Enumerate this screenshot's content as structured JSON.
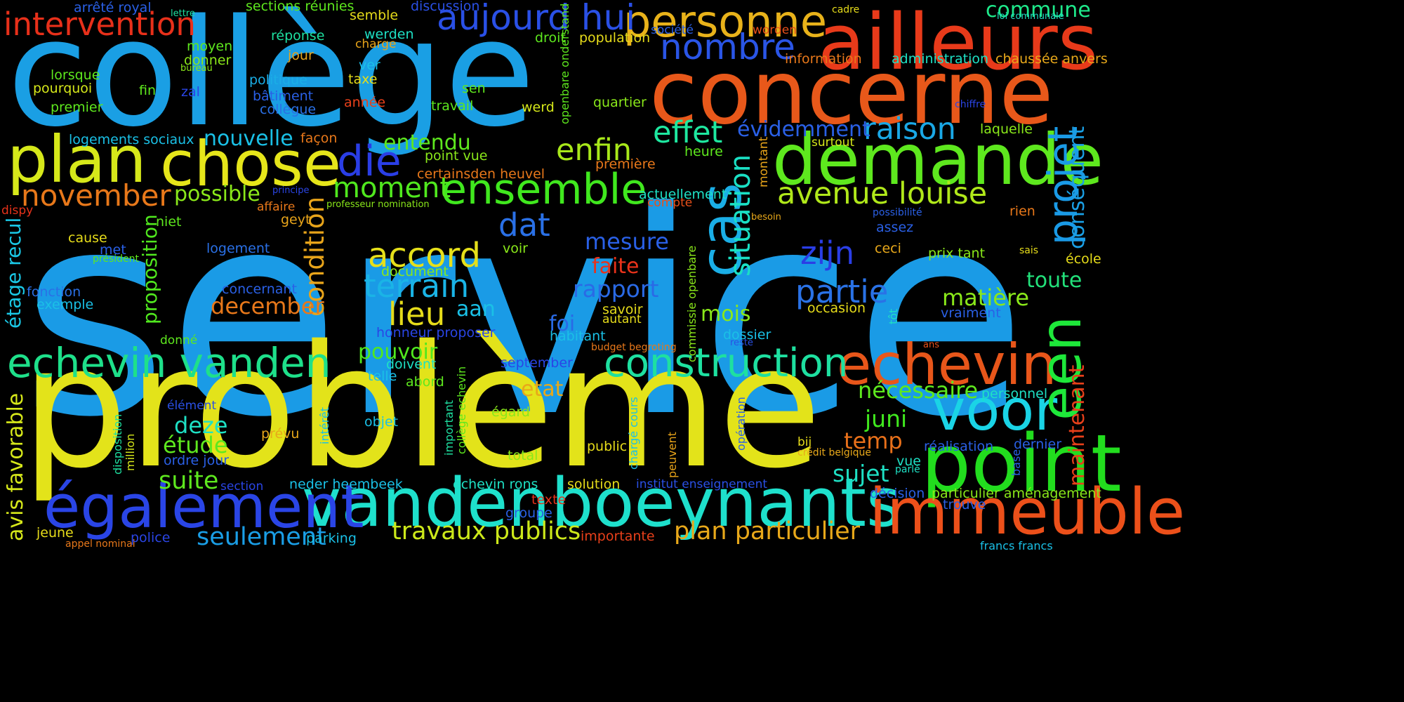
{
  "background": "#000000",
  "words": [
    {
      "text": "service",
      "color": "#1a9be6"
    },
    {
      "text": "problème",
      "color": "#e3e31a"
    },
    {
      "text": "collège",
      "color": "#1a9fe4"
    },
    {
      "text": "concerne",
      "color": "#e8581a"
    },
    {
      "text": "ailleurs",
      "color": "#e83a1a"
    },
    {
      "text": "point",
      "color": "#22dd1e"
    },
    {
      "text": "boeynants",
      "color": "#1ee0cc"
    },
    {
      "text": "vanden",
      "color": "#1ee0cc"
    },
    {
      "text": "également",
      "color": "#2a45e6"
    },
    {
      "text": "immeuble",
      "color": "#ec501a"
    },
    {
      "text": "demande",
      "color": "#5ee81e"
    },
    {
      "text": "chose",
      "color": "#e6e61a"
    },
    {
      "text": "plan",
      "color": "#d6e81a"
    },
    {
      "text": "echevin",
      "color": "#e8561a"
    },
    {
      "text": "voor",
      "color": "#1ad4e6"
    },
    {
      "text": "een",
      "color": "#1ee83a"
    },
    {
      "text": "cas",
      "color": "#1aaee6"
    },
    {
      "text": "projet",
      "color": "#1a9ae6"
    },
    {
      "text": "personne",
      "color": "#e8b21a"
    },
    {
      "text": "echevin vanden",
      "color": "#1ee08a"
    },
    {
      "text": "construction",
      "color": "#1ee0a0"
    },
    {
      "text": "ensemble",
      "color": "#40e81e"
    },
    {
      "text": "die",
      "color": "#2a3ee6"
    },
    {
      "text": "aujourd hui",
      "color": "#2a50e6"
    },
    {
      "text": "intervention",
      "color": "#e8301a"
    },
    {
      "text": "terrain",
      "color": "#1ab4e6"
    },
    {
      "text": "accord",
      "color": "#e6e01a"
    },
    {
      "text": "moment",
      "color": "#50e81e"
    },
    {
      "text": "nombre",
      "color": "#2a55e6"
    },
    {
      "text": "raison",
      "color": "#1aa8e6"
    },
    {
      "text": "avenue louise",
      "color": "#b0e81a"
    },
    {
      "text": "november",
      "color": "#e8781a"
    },
    {
      "text": "situation",
      "color": "#1ae0c4"
    },
    {
      "text": "condition",
      "color": "#e8a41a"
    },
    {
      "text": "zijn",
      "color": "#2a3ee6"
    },
    {
      "text": "partie",
      "color": "#2a72e6"
    },
    {
      "text": "effet",
      "color": "#1ee8a0"
    },
    {
      "text": "enfin",
      "color": "#a8e81a"
    },
    {
      "text": "lieu",
      "color": "#e6dc1a"
    },
    {
      "text": "travaux publics",
      "color": "#cce81a"
    },
    {
      "text": "plan particulier",
      "color": "#e8a81a"
    },
    {
      "text": "seulement",
      "color": "#1a9ee6"
    },
    {
      "text": "dat",
      "color": "#2a70e6"
    },
    {
      "text": "rapport",
      "color": "#2a6ae6"
    },
    {
      "text": "suite",
      "color": "#5ee81e"
    },
    {
      "text": "nécessaire",
      "color": "#5ee81e"
    },
    {
      "text": "commune",
      "color": "#1ee88a"
    },
    {
      "text": "temp",
      "color": "#e8701a"
    },
    {
      "text": "sujet",
      "color": "#1ee0c4"
    },
    {
      "text": "juni",
      "color": "#40e81e"
    },
    {
      "text": "deze",
      "color": "#1ee0c4"
    },
    {
      "text": "étude",
      "color": "#5ee81e"
    },
    {
      "text": "avis favorable",
      "color": "#d6e81a"
    },
    {
      "text": "étage recul",
      "color": "#1ac8e6"
    },
    {
      "text": "conséquent",
      "color": "#1aa0e6"
    },
    {
      "text": "maintenant",
      "color": "#e8401a"
    },
    {
      "text": "matière",
      "color": "#8ae81a"
    },
    {
      "text": "toute",
      "color": "#22e07a"
    },
    {
      "text": "mesure",
      "color": "#2a60e6"
    },
    {
      "text": "faite",
      "color": "#e8321a"
    },
    {
      "text": "december",
      "color": "#e8781a"
    },
    {
      "text": "mois",
      "color": "#8ae81a"
    },
    {
      "text": "nouvelle",
      "color": "#1ac0e6"
    },
    {
      "text": "évidemment",
      "color": "#2a60e6"
    },
    {
      "text": "entendu",
      "color": "#5ee81e"
    },
    {
      "text": "possible",
      "color": "#8ae81a"
    },
    {
      "text": "proposition",
      "color": "#50e81e"
    },
    {
      "text": "pouvoir",
      "color": "#50e81e"
    },
    {
      "text": "etat",
      "color": "#e8a81a"
    },
    {
      "text": "foi",
      "color": "#2a6ae6"
    },
    {
      "text": "aan",
      "color": "#1ac0e6"
    },
    {
      "text": "arrêté royal",
      "color": "#2a60e6"
    },
    {
      "text": "sections réunies",
      "color": "#5ee81e"
    },
    {
      "text": "discussion",
      "color": "#2a50e6"
    },
    {
      "text": "lettre",
      "color": "#1ee0a0"
    },
    {
      "text": "semble",
      "color": "#e6dc1a"
    },
    {
      "text": "réponse",
      "color": "#1ee0a0"
    },
    {
      "text": "werden",
      "color": "#1ee0c4"
    },
    {
      "text": "charge",
      "color": "#e8a41a"
    },
    {
      "text": "moyen",
      "color": "#5ee81e"
    },
    {
      "text": "donner",
      "color": "#8ae81a"
    },
    {
      "text": "bureau",
      "color": "#8ae81a"
    },
    {
      "text": "jour",
      "color": "#e8a41a"
    },
    {
      "text": "ver",
      "color": "#1ac0e6"
    },
    {
      "text": "taxe",
      "color": "#e6dc1a"
    },
    {
      "text": "politique",
      "color": "#1aaee6"
    },
    {
      "text": "lorsque",
      "color": "#5ee81e"
    },
    {
      "text": "pourquoi",
      "color": "#d6e81a"
    },
    {
      "text": "fin",
      "color": "#5ee81e"
    },
    {
      "text": "zal",
      "color": "#2a45e6"
    },
    {
      "text": "bâtiment",
      "color": "#2a60e6"
    },
    {
      "text": "collègue",
      "color": "#2a70e6"
    },
    {
      "text": "année",
      "color": "#e8401a"
    },
    {
      "text": "sen",
      "color": "#5ee81e"
    },
    {
      "text": "premier",
      "color": "#5ee81e"
    },
    {
      "text": "travail",
      "color": "#5ee81e"
    },
    {
      "text": "werd",
      "color": "#d6e81a"
    },
    {
      "text": "quartier",
      "color": "#8ae81a"
    },
    {
      "text": "droit",
      "color": "#5ee81e"
    },
    {
      "text": "population",
      "color": "#e6dc1a"
    },
    {
      "text": "openbare onderstand",
      "color": "#5ee81e"
    },
    {
      "text": "société",
      "color": "#2a60e6"
    },
    {
      "text": "worden",
      "color": "#e8501a"
    },
    {
      "text": "information",
      "color": "#e8781a"
    },
    {
      "text": "administration",
      "color": "#1ee0c4"
    },
    {
      "text": "chaussée anvers",
      "color": "#e8a81a"
    },
    {
      "text": "cadre",
      "color": "#e6dc1a"
    },
    {
      "text": "loi communale",
      "color": "#1ee0c4"
    },
    {
      "text": "chiffre",
      "color": "#2a45e6"
    },
    {
      "text": "laquelle",
      "color": "#8ae81a"
    },
    {
      "text": "surtout",
      "color": "#d6e81a"
    },
    {
      "text": "heure",
      "color": "#5ee81e"
    },
    {
      "text": "montant",
      "color": "#e8a41a"
    },
    {
      "text": "logements sociaux",
      "color": "#1ac0e6"
    },
    {
      "text": "façon",
      "color": "#e8781a"
    },
    {
      "text": "point vue",
      "color": "#8ae81a"
    },
    {
      "text": "certainsden heuvel",
      "color": "#e8781a"
    },
    {
      "text": "première",
      "color": "#e8781a"
    },
    {
      "text": "actuellement",
      "color": "#1ee0c4"
    },
    {
      "text": "compte",
      "color": "#e8501a"
    },
    {
      "text": "principe",
      "color": "#2a45e6"
    },
    {
      "text": "professeur nomination",
      "color": "#8ae81a"
    },
    {
      "text": "affaire",
      "color": "#e8781a"
    },
    {
      "text": "geyt",
      "color": "#e8a41a"
    },
    {
      "text": "dispy",
      "color": "#e8321a"
    },
    {
      "text": "niet",
      "color": "#5ee81e"
    },
    {
      "text": "besoin",
      "color": "#e8a81a"
    },
    {
      "text": "possibilité",
      "color": "#2a60e6"
    },
    {
      "text": "rien",
      "color": "#e8781a"
    },
    {
      "text": "assez",
      "color": "#2a60e6"
    },
    {
      "text": "cause",
      "color": "#e6dc1a"
    },
    {
      "text": "logement",
      "color": "#2a70e6"
    },
    {
      "text": "met",
      "color": "#2a60e6"
    },
    {
      "text": "président",
      "color": "#5ee81e"
    },
    {
      "text": "voir",
      "color": "#8ae81a"
    },
    {
      "text": "document",
      "color": "#8ae81a"
    },
    {
      "text": "ceci",
      "color": "#e8a81a"
    },
    {
      "text": "prix tant",
      "color": "#8ae81a"
    },
    {
      "text": "sais",
      "color": "#e6dc1a"
    },
    {
      "text": "école",
      "color": "#e6dc1a"
    },
    {
      "text": "concernant",
      "color": "#2a60e6"
    },
    {
      "text": "fonction",
      "color": "#2a70e6"
    },
    {
      "text": "exemple",
      "color": "#1ac0e6"
    },
    {
      "text": "commissie openbare",
      "color": "#8ae81a"
    },
    {
      "text": "savoir",
      "color": "#e6dc1a"
    },
    {
      "text": "autant",
      "color": "#e6dc1a"
    },
    {
      "text": "occasion",
      "color": "#e6dc1a"
    },
    {
      "text": "tôt",
      "color": "#1ee0c4"
    },
    {
      "text": "vraiment",
      "color": "#2a60e6"
    },
    {
      "text": "honneur proposer",
      "color": "#2a45e6"
    },
    {
      "text": "habitant",
      "color": "#1ac0e6"
    },
    {
      "text": "dossier",
      "color": "#1ac0e6"
    },
    {
      "text": "reste",
      "color": "#2a50e6"
    },
    {
      "text": "budget begroting",
      "color": "#e8781a"
    },
    {
      "text": "ans",
      "color": "#e8501a"
    },
    {
      "text": "donné",
      "color": "#5ee81e"
    },
    {
      "text": "doivent",
      "color": "#1ee0c4"
    },
    {
      "text": "telle",
      "color": "#1ac0e6"
    },
    {
      "text": "abord",
      "color": "#5ee81e"
    },
    {
      "text": "september",
      "color": "#2a45e6"
    },
    {
      "text": "collège echevin",
      "color": "#5ee81e"
    },
    {
      "text": "important",
      "color": "#1ee0a0"
    },
    {
      "text": "égard",
      "color": "#8ae81a"
    },
    {
      "text": "chargé cours",
      "color": "#1ac0e6"
    },
    {
      "text": "personnel",
      "color": "#1ee0c4"
    },
    {
      "text": "élément",
      "color": "#2a50e6"
    },
    {
      "text": "intérêt",
      "color": "#1ac0e6"
    },
    {
      "text": "objet",
      "color": "#1ac0e6"
    },
    {
      "text": "prévu",
      "color": "#e8a81a"
    },
    {
      "text": "opération",
      "color": "#2a60e6"
    },
    {
      "text": "public",
      "color": "#e6dc1a"
    },
    {
      "text": "peuvent",
      "color": "#e8a41a"
    },
    {
      "text": "bij",
      "color": "#e6dc1a"
    },
    {
      "text": "crédit belgique",
      "color": "#e8a81a"
    },
    {
      "text": "réalisation",
      "color": "#2a60e6"
    },
    {
      "text": "dernier",
      "color": "#2a60e6"
    },
    {
      "text": "base",
      "color": "#2a60e6"
    },
    {
      "text": "disposition",
      "color": "#1ee0a0"
    },
    {
      "text": "million",
      "color": "#d6e81a"
    },
    {
      "text": "ordre jour",
      "color": "#2a60e6"
    },
    {
      "text": "total",
      "color": "#8ae81a"
    },
    {
      "text": "vue",
      "color": "#1ee0c4"
    },
    {
      "text": "parlé",
      "color": "#1ee0c4"
    },
    {
      "text": "section",
      "color": "#2a45e6"
    },
    {
      "text": "neder heembeek",
      "color": "#1ac0e6"
    },
    {
      "text": "echevin rons",
      "color": "#1ee0c4"
    },
    {
      "text": "solution",
      "color": "#e6dc1a"
    },
    {
      "text": "institut enseignement",
      "color": "#2a50e6"
    },
    {
      "text": "décision",
      "color": "#2a60e6"
    },
    {
      "text": "particulier aménagement",
      "color": "#8ae81a"
    },
    {
      "text": "trouve",
      "color": "#2a60e6"
    },
    {
      "text": "texte",
      "color": "#e8321a"
    },
    {
      "text": "groupe",
      "color": "#2a60e6"
    },
    {
      "text": "jeune",
      "color": "#e6dc1a"
    },
    {
      "text": "appel nominal",
      "color": "#e8781a"
    },
    {
      "text": "police",
      "color": "#2a45e6"
    },
    {
      "text": "parking",
      "color": "#1ac0e6"
    },
    {
      "text": "importante",
      "color": "#e8401a"
    },
    {
      "text": "francs francs",
      "color": "#1ac0e6"
    }
  ]
}
